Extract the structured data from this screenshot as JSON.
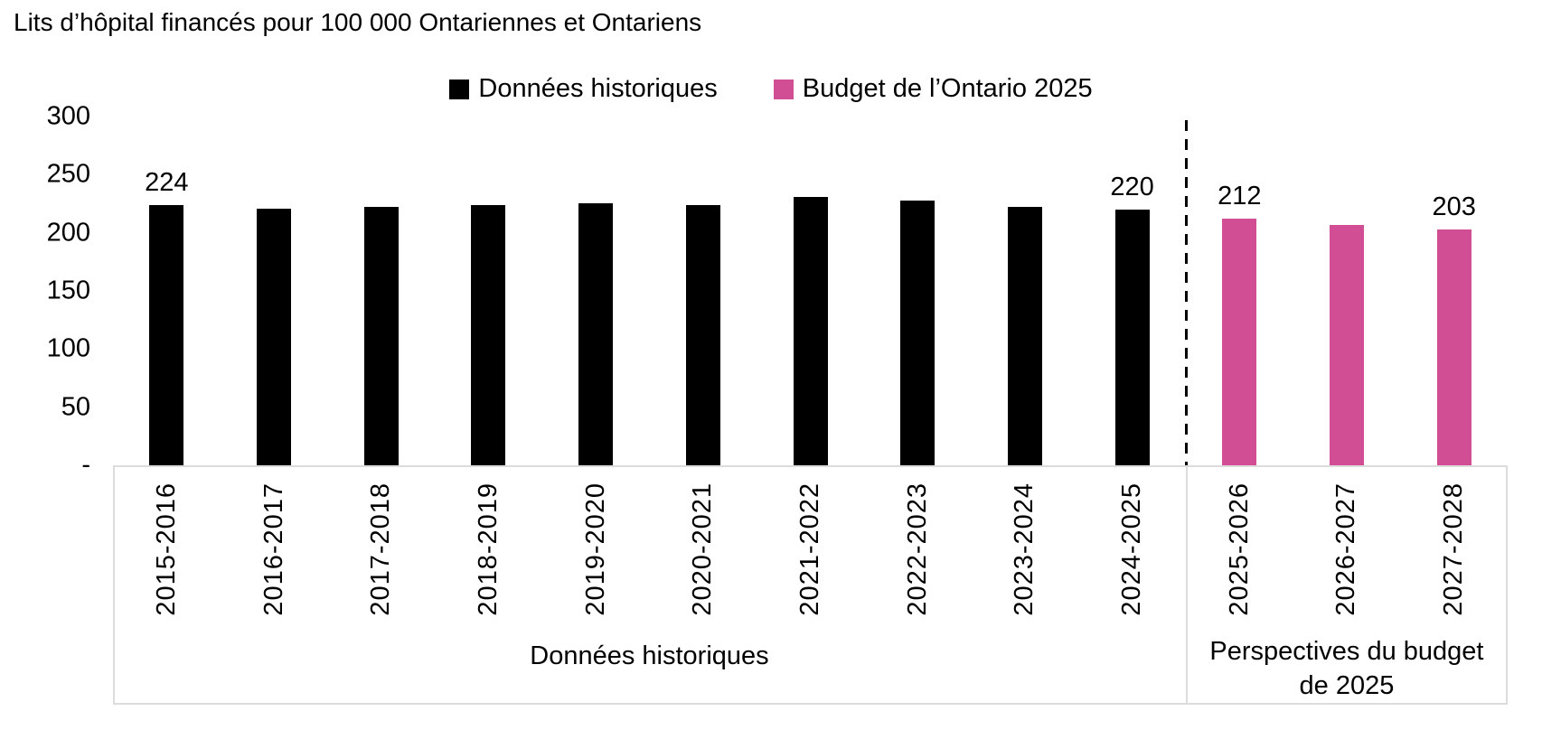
{
  "title": "Lits d’hôpital financés pour 100 000 Ontariennes et Ontariens",
  "legend": [
    {
      "label": "Données historiques",
      "color": "#000000"
    },
    {
      "label": "Budget de l’Ontario 2025",
      "color": "#d14e95"
    }
  ],
  "colors": {
    "historical_bar": "#000000",
    "budget_bar": "#d14e95",
    "axis_border": "#dcdcdc",
    "separator_line": "#000000"
  },
  "chart_data": {
    "type": "bar",
    "title": "Lits d’hôpital financés pour 100 000 Ontariennes et Ontariens",
    "categories": [
      "2015-2016",
      "2016-2017",
      "2017-2018",
      "2018-2019",
      "2019-2020",
      "2020-2021",
      "2021-2022",
      "2022-2023",
      "2023-2024",
      "2024-2025",
      "2025-2026",
      "2026-2027",
      "2027-2028"
    ],
    "series": [
      {
        "name": "Données historiques",
        "color": "#000000",
        "values": [
          224,
          221,
          222,
          224,
          225,
          224,
          231,
          228,
          222,
          220,
          null,
          null,
          null
        ]
      },
      {
        "name": "Budget de l’Ontario 2025",
        "color": "#d14e95",
        "values": [
          null,
          null,
          null,
          null,
          null,
          null,
          null,
          null,
          null,
          null,
          212,
          207,
          203
        ]
      }
    ],
    "value_labels": [
      224,
      null,
      null,
      null,
      null,
      null,
      null,
      null,
      null,
      220,
      212,
      null,
      203
    ],
    "xlabel": "",
    "ylabel": "",
    "ylim": [
      0,
      300
    ],
    "grid": "off",
    "legend_position": "top-center",
    "y_axis_ticks": [
      {
        "label": "300",
        "value": 300
      },
      {
        "label": "250",
        "value": 250
      },
      {
        "label": "200",
        "value": 200
      },
      {
        "label": "150",
        "value": 150
      },
      {
        "label": "100",
        "value": 100
      },
      {
        "label": "50",
        "value": 50
      },
      {
        "label": "-",
        "value": 0
      }
    ],
    "groups": [
      {
        "label": "Données historiques",
        "span": [
          0,
          9
        ]
      },
      {
        "label": "Perspectives du budget de 2025",
        "span": [
          10,
          12
        ]
      }
    ],
    "separator": {
      "style": "dashed",
      "between": [
        "2024-2025",
        "2025-2026"
      ]
    }
  }
}
